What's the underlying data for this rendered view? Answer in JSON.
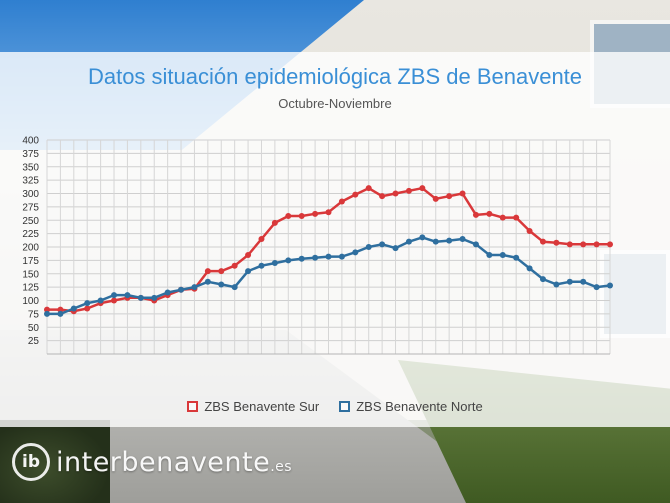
{
  "title": "Datos situación epidemiológica ZBS de Benavente",
  "subtitle": "Octubre-Noviembre",
  "logo": {
    "mark": "ib",
    "name": "interbenavente",
    "suffix": ".es"
  },
  "chart_data": {
    "type": "line",
    "title": "Datos situación epidemiológica ZBS de Benavente",
    "subtitle": "Octubre-Noviembre",
    "xlabel": "",
    "ylabel": "",
    "ylim": [
      0,
      400
    ],
    "yticks": [
      25,
      50,
      75,
      100,
      125,
      150,
      175,
      200,
      225,
      250,
      275,
      300,
      325,
      350,
      375,
      400
    ],
    "grid": true,
    "legend_position": "bottom",
    "series": [
      {
        "name": "ZBS Benavente Sur",
        "color": "#d9383a",
        "values": [
          83,
          83,
          80,
          85,
          95,
          100,
          105,
          105,
          100,
          110,
          120,
          122,
          155,
          155,
          165,
          185,
          215,
          245,
          258,
          258,
          262,
          265,
          285,
          298,
          310,
          295,
          300,
          305,
          310,
          290,
          295,
          300,
          260,
          262,
          255,
          255,
          230,
          210,
          208,
          205,
          205,
          205,
          205
        ]
      },
      {
        "name": "ZBS Benavente Norte",
        "color": "#2f6f9f",
        "values": [
          75,
          75,
          85,
          95,
          100,
          110,
          110,
          105,
          105,
          115,
          120,
          125,
          135,
          130,
          125,
          155,
          165,
          170,
          175,
          178,
          180,
          182,
          182,
          190,
          200,
          205,
          198,
          210,
          218,
          210,
          212,
          215,
          205,
          185,
          185,
          180,
          160,
          140,
          130,
          135,
          135,
          125,
          128
        ]
      }
    ]
  }
}
